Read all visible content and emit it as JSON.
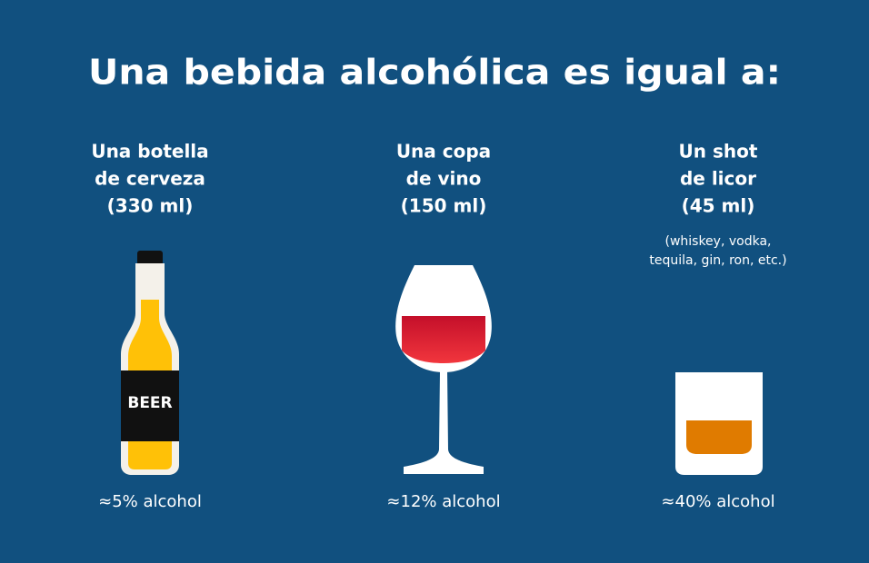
{
  "title": "Una bebida alcohólica es igual a:",
  "items": [
    {
      "heading": [
        "Una botella",
        "de cerveza",
        "(330 ml)"
      ],
      "bottle_label": "BEER",
      "alcohol": "≈5% alcohol"
    },
    {
      "heading": [
        "Una copa",
        "de vino",
        "(150 ml)"
      ],
      "alcohol": "≈12% alcohol"
    },
    {
      "heading": [
        "Un shot",
        "de licor",
        "(45 ml)"
      ],
      "note": [
        "(whiskey, vodka,",
        "tequila, gin, ron, etc.)"
      ],
      "alcohol": "≈40% alcohol"
    }
  ]
}
